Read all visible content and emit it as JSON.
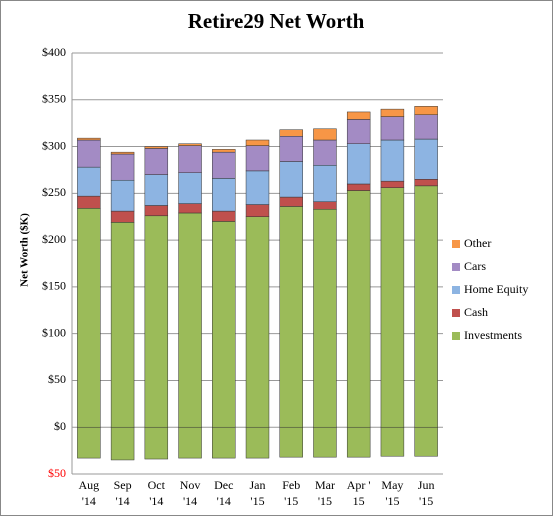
{
  "chart_data": {
    "type": "stacked_bar",
    "title": "Retire29 Net Worth",
    "y_label": "Net Worth ($K)",
    "categories": [
      "Aug '14",
      "Sep '14",
      "Oct '14",
      "Nov '14",
      "Dec '14",
      "Jan '15",
      "Feb '15",
      "Mar '15",
      "Apr ' 15",
      "May '15",
      "Jun '15"
    ],
    "series": [
      {
        "color": "#9bbb59",
        "values": [
          -33,
          -35,
          -34,
          -33,
          -33,
          -33,
          -32,
          -32,
          -32,
          -31,
          -31
        ]
      },
      {
        "name": "Investments",
        "color": "#9bbb59",
        "values": [
          234,
          219,
          226,
          229,
          220,
          225,
          236,
          233,
          253,
          256,
          258
        ]
      },
      {
        "name": "Cash",
        "color": "#c0504d",
        "values": [
          13,
          12,
          11,
          10,
          11,
          13,
          10,
          8,
          7,
          7,
          7
        ]
      },
      {
        "name": "Home Equity",
        "color": "#8db4e2",
        "values": [
          31,
          33,
          33,
          33,
          35,
          36,
          38,
          39,
          43,
          44,
          43
        ]
      },
      {
        "name": "Cars",
        "color": "#a38bc4",
        "values": [
          29,
          28,
          28,
          29,
          28,
          27,
          27,
          27,
          26,
          25,
          26
        ]
      },
      {
        "name": "Other",
        "color": "#f79646",
        "values": [
          2,
          2,
          2,
          2,
          3,
          6,
          7,
          12,
          8,
          8,
          9
        ]
      }
    ],
    "ylim": [
      -50,
      400
    ],
    "yticks": [
      {
        "value": -50,
        "label": "$50",
        "color": "#ff0000"
      },
      {
        "value": 0,
        "label": "$0"
      },
      {
        "value": 50,
        "label": "$50"
      },
      {
        "value": 100,
        "label": "$100"
      },
      {
        "value": 150,
        "label": "$150"
      },
      {
        "value": 200,
        "label": "$200"
      },
      {
        "value": 250,
        "label": "$250"
      },
      {
        "value": 300,
        "label": "$300"
      },
      {
        "value": 350,
        "label": "$350"
      },
      {
        "value": 400,
        "label": "$400"
      }
    ],
    "grid": true,
    "legend": "right"
  }
}
